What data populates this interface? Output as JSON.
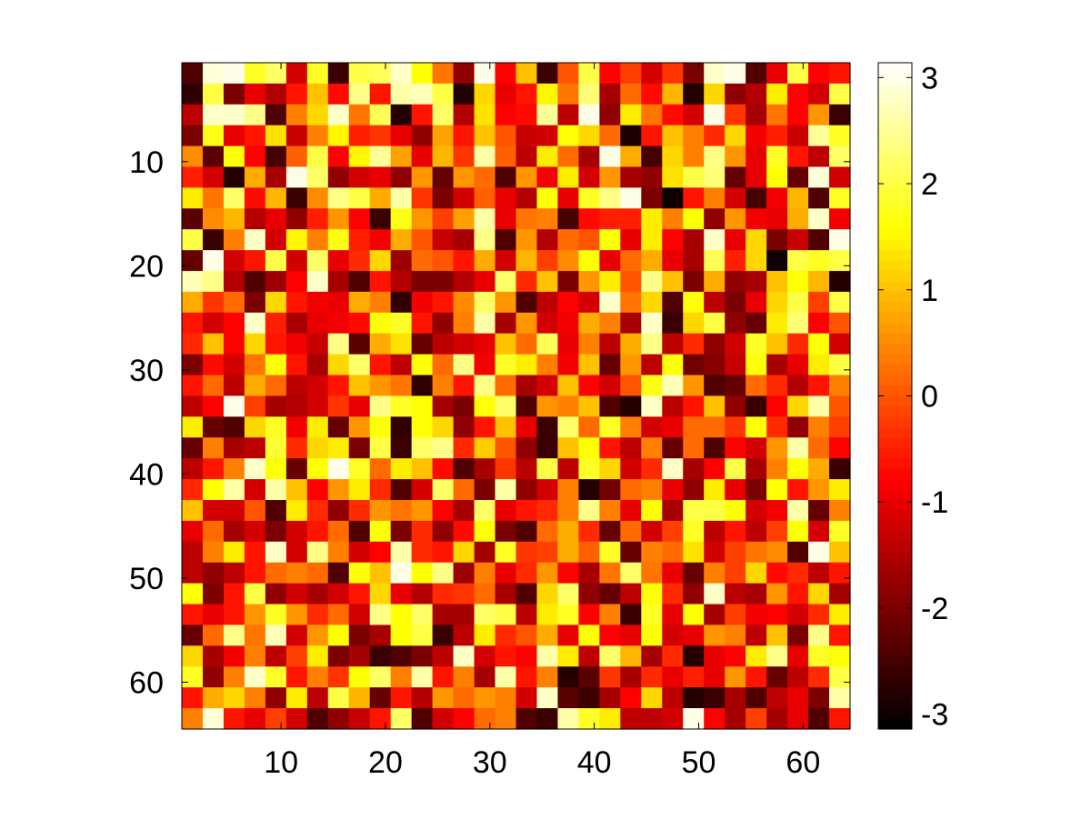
{
  "chart_data": {
    "type": "heatmap",
    "title": "",
    "xlabel": "",
    "ylabel": "",
    "grid": false,
    "rows": 32,
    "cols": 32,
    "x_extent": [
      1,
      64
    ],
    "y_extent": [
      1,
      64
    ],
    "y_direction": "top-down",
    "xticks": [
      10,
      20,
      30,
      40,
      50,
      60
    ],
    "yticks": [
      10,
      20,
      30,
      40,
      50,
      60
    ],
    "colormap": "hot",
    "colorbar": {
      "placement": "right",
      "clim": [
        -3.14,
        3.14
      ],
      "ticks": [
        -3,
        -2,
        -1,
        0,
        1,
        2,
        3
      ]
    },
    "values": [
      [
        -2.4,
        2.9,
        3.0,
        1.8,
        2.2,
        -1.2,
        1.8,
        -2.6,
        2.0,
        2.1,
        2.8,
        1.6,
        0.3,
        -1.8,
        3.0,
        -0.8,
        1.0,
        -2.6,
        0.0,
        2.0,
        -0.8,
        -0.2,
        -1.2,
        -0.3,
        -2.0,
        2.8,
        3.0,
        -2.4,
        -1.0,
        2.0,
        -0.8,
        -0.6
      ],
      [
        -2.7,
        2.0,
        -2.0,
        -1.0,
        -1.5,
        -0.6,
        1.0,
        -0.7,
        2.4,
        -0.6,
        2.6,
        2.7,
        2.0,
        -2.8,
        1.2,
        -1.0,
        -0.6,
        1.5,
        0.3,
        2.3,
        -1.6,
        0.2,
        -0.7,
        0.9,
        -2.8,
        1.2,
        -1.8,
        -1.5,
        1.4,
        -0.8,
        -1.2,
        2.0
      ],
      [
        -1.4,
        2.8,
        2.8,
        2.4,
        -2.4,
        0.4,
        1.2,
        2.8,
        0.3,
        2.1,
        -2.8,
        -0.6,
        2.2,
        -1.5,
        1.3,
        -0.8,
        -0.7,
        2.5,
        -1.4,
        3.0,
        -1.8,
        1.4,
        0.3,
        -0.7,
        -1.2,
        3.0,
        -0.3,
        -1.6,
        0.3,
        -0.8,
        0.6,
        -2.6
      ],
      [
        -2.0,
        1.7,
        -1.0,
        -0.6,
        1.3,
        -1.3,
        0.4,
        1.5,
        -0.5,
        -0.3,
        -1.0,
        -1.8,
        0.7,
        -0.6,
        1.0,
        0.0,
        -1.3,
        -1.2,
        1.6,
        1.2,
        0.2,
        -2.9,
        -0.6,
        1.0,
        0.4,
        -0.4,
        1.2,
        -0.9,
        -0.5,
        -1.3,
        2.5,
        1.8
      ],
      [
        0.5,
        -2.3,
        1.6,
        -0.8,
        -2.5,
        0.1,
        2.0,
        -0.8,
        1.5,
        2.5,
        0.7,
        -1.0,
        0.9,
        -0.3,
        2.6,
        0.1,
        -1.4,
        1.4,
        0.2,
        -1.6,
        3.0,
        0.8,
        -2.5,
        1.2,
        0.4,
        2.4,
        0.6,
        -1.0,
        1.8,
        -0.6,
        -1.4,
        2.2
      ],
      [
        -0.5,
        -1.2,
        -2.8,
        0.8,
        -1.6,
        3.0,
        2.2,
        -1.8,
        -1.2,
        -1.0,
        -1.8,
        0.6,
        -2.2,
        0.6,
        0.2,
        -2.4,
        0.6,
        -0.9,
        1.4,
        -1.2,
        0.6,
        -1.6,
        -1.8,
        1.3,
        2.0,
        2.3,
        -2.2,
        -1.0,
        1.6,
        -2.2,
        2.9,
        -1.2
      ],
      [
        1.4,
        0.3,
        2.2,
        -0.7,
        0.9,
        -2.6,
        0.5,
        2.4,
        2.0,
        0.8,
        2.6,
        -0.3,
        -2.0,
        -1.2,
        0.1,
        -1.0,
        -1.5,
        1.6,
        -1.0,
        1.8,
        2.4,
        3.0,
        -2.0,
        -3.0,
        -0.6,
        0.4,
        -1.2,
        -2.5,
        -0.9,
        0.9,
        -2.4,
        1.8
      ],
      [
        -2.3,
        0.5,
        0.9,
        -1.5,
        -1.0,
        -1.8,
        -0.5,
        0.6,
        -0.8,
        -2.6,
        1.7,
        0.6,
        -0.2,
        0.7,
        2.6,
        -1.0,
        0.3,
        0.4,
        -2.5,
        -0.7,
        -0.5,
        -0.5,
        1.4,
        0.4,
        1.6,
        -1.8,
        0.6,
        -0.9,
        -1.0,
        0.8,
        2.8,
        -0.9
      ],
      [
        2.0,
        -2.6,
        0.4,
        2.8,
        -1.2,
        1.5,
        0.4,
        1.7,
        -0.5,
        -0.9,
        0.8,
        0.0,
        -1.3,
        -1.6,
        2.4,
        -2.4,
        0.6,
        -1.5,
        0.2,
        0.0,
        1.6,
        -1.0,
        1.4,
        -0.8,
        -1.6,
        2.8,
        -1.0,
        1.2,
        -2.0,
        -1.3,
        -2.4,
        3.0
      ],
      [
        -2.2,
        3.0,
        -1.2,
        -0.6,
        2.0,
        -1.2,
        2.2,
        -1.0,
        -0.4,
        1.2,
        -1.7,
        0.2,
        0.0,
        -0.6,
        0.8,
        -1.2,
        0.9,
        -0.2,
        0.5,
        1.6,
        -1.0,
        0.2,
        0.8,
        -1.0,
        -1.6,
        2.1,
        -0.5,
        1.2,
        -3.0,
        2.0,
        1.8,
        2.0
      ],
      [
        2.7,
        2.4,
        -1.5,
        -2.4,
        -1.7,
        -0.8,
        2.8,
        -1.6,
        -2.4,
        -0.6,
        -1.5,
        -2.0,
        -2.0,
        -1.5,
        -1.0,
        2.2,
        -0.4,
        1.0,
        -2.0,
        0.6,
        1.4,
        0.0,
        2.4,
        1.0,
        -2.0,
        0.8,
        -1.8,
        -1.6,
        1.0,
        1.6,
        0.9,
        -2.8
      ],
      [
        0.8,
        -0.3,
        0.2,
        -2.0,
        1.2,
        -0.6,
        -0.9,
        -1.0,
        0.8,
        0.4,
        -2.7,
        -0.9,
        -0.6,
        0.5,
        2.2,
        0.6,
        -2.4,
        -1.4,
        -0.8,
        -1.2,
        2.8,
        0.3,
        1.2,
        -2.4,
        1.6,
        -1.4,
        -2.0,
        -1.0,
        1.2,
        2.0,
        -0.2,
        2.0
      ],
      [
        -0.6,
        -1.2,
        -0.8,
        2.8,
        -0.5,
        -1.6,
        -1.0,
        -0.9,
        -0.7,
        1.6,
        1.8,
        -0.6,
        -1.8,
        0.4,
        2.6,
        -1.6,
        0.6,
        -1.2,
        -0.9,
        0.8,
        0.4,
        -1.6,
        2.8,
        -2.6,
        1.2,
        2.0,
        -1.8,
        -2.2,
        1.4,
        2.3,
        -0.8,
        0.0
      ],
      [
        -0.4,
        1.0,
        -0.8,
        1.2,
        -0.6,
        -0.9,
        -1.3,
        2.4,
        -2.3,
        0.8,
        1.3,
        -2.2,
        -1.4,
        -1.2,
        -1.0,
        1.0,
        0.2,
        2.1,
        -1.0,
        0.4,
        -1.4,
        0.8,
        2.4,
        -1.4,
        -0.4,
        -1.8,
        -1.2,
        1.8,
        1.0,
        -0.4,
        1.6,
        -1.2
      ],
      [
        -2.0,
        -0.7,
        -1.2,
        0.3,
        1.6,
        -0.6,
        -1.6,
        1.2,
        2.2,
        -0.6,
        -1.4,
        1.6,
        0.2,
        2.4,
        -0.9,
        1.8,
        1.4,
        0.4,
        -0.9,
        1.0,
        -2.2,
        0.6,
        -1.4,
        1.6,
        -2.1,
        -1.9,
        -1.3,
        1.6,
        -1.6,
        -1.0,
        1.4,
        2.0
      ],
      [
        -0.6,
        0.2,
        -1.4,
        0.8,
        0.2,
        -1.4,
        -1.2,
        -0.6,
        1.0,
        0.6,
        0.3,
        -2.7,
        0.4,
        -0.6,
        2.4,
        0.2,
        -1.6,
        -1.2,
        1.0,
        -0.8,
        -1.2,
        0.0,
        1.7,
        2.7,
        0.6,
        -2.4,
        -2.2,
        0.2,
        -0.4,
        -1.5,
        -0.6,
        0.4
      ],
      [
        -1.4,
        -0.8,
        3.0,
        -0.2,
        -1.6,
        -1.5,
        -1.2,
        -0.3,
        -1.0,
        2.4,
        1.8,
        1.6,
        -1.6,
        -2.0,
        1.6,
        2.2,
        -2.4,
        0.6,
        0.4,
        1.0,
        -2.4,
        -2.8,
        2.8,
        -1.4,
        -0.6,
        1.0,
        -1.8,
        -2.6,
        -0.8,
        1.2,
        2.6,
        0.0
      ],
      [
        1.4,
        -2.2,
        -2.4,
        1.2,
        1.8,
        -0.9,
        1.4,
        -2.2,
        0.6,
        1.6,
        -2.7,
        1.6,
        1.2,
        -1.8,
        -0.6,
        1.0,
        -1.0,
        -2.6,
        2.2,
        0.2,
        1.8,
        0.4,
        -1.2,
        -1.0,
        0.2,
        0.2,
        -0.3,
        1.6,
        -0.4,
        -1.8,
        0.4,
        -0.2
      ],
      [
        -2.2,
        0.4,
        -1.6,
        -1.4,
        1.9,
        -0.4,
        1.2,
        1.4,
        -2.0,
        2.0,
        -2.6,
        2.2,
        2.4,
        -0.4,
        1.1,
        0.0,
        -1.8,
        -2.6,
        1.0,
        1.6,
        -0.6,
        -1.4,
        0.4,
        -2.2,
        0.2,
        -2.4,
        -0.8,
        -1.2,
        0.6,
        2.6,
        0.2,
        -0.8
      ],
      [
        -1.4,
        -0.6,
        0.4,
        2.8,
        1.6,
        -2.2,
        1.6,
        3.0,
        1.8,
        0.2,
        1.4,
        1.0,
        -0.7,
        -2.4,
        -1.6,
        -0.3,
        -1.4,
        2.0,
        -1.4,
        1.8,
        1.2,
        -1.2,
        -0.4,
        2.8,
        -1.6,
        -0.8,
        2.0,
        -1.6,
        0.4,
        1.6,
        0.8,
        -2.6
      ],
      [
        -0.4,
        1.6,
        2.6,
        -1.2,
        2.6,
        1.0,
        -0.8,
        0.6,
        1.4,
        -0.4,
        -2.4,
        -1.2,
        2.2,
        0.2,
        -2.0,
        2.6,
        -1.8,
        -1.2,
        0.4,
        -2.8,
        -2.1,
        0.2,
        0.4,
        -1.0,
        -1.8,
        1.4,
        -1.0,
        -2.0,
        1.6,
        -0.6,
        0.6,
        1.4
      ],
      [
        1.0,
        -1.2,
        -1.2,
        0.0,
        -2.4,
        1.4,
        -0.4,
        -1.8,
        -0.4,
        0.6,
        0.3,
        0.6,
        -0.8,
        -1.6,
        2.2,
        -1.0,
        -0.6,
        -0.4,
        0.4,
        2.4,
        0.4,
        -1.0,
        1.6,
        -1.6,
        2.0,
        2.0,
        1.6,
        -1.2,
        -0.9,
        2.6,
        -2.2,
        0.4
      ],
      [
        -1.0,
        0.2,
        -1.6,
        -1.2,
        -2.0,
        -1.2,
        -0.6,
        0.2,
        -2.4,
        1.6,
        -2.0,
        -0.4,
        -1.8,
        -0.7,
        1.6,
        -2.0,
        -2.4,
        0.2,
        0.8,
        -0.4,
        -2.2,
        0.2,
        -1.2,
        -0.2,
        1.8,
        -1.4,
        -0.6,
        -1.4,
        -0.2,
        1.6,
        -1.2,
        1.8
      ],
      [
        -1.4,
        0.4,
        1.4,
        -0.6,
        2.8,
        -1.2,
        2.4,
        0.4,
        -1.2,
        -0.8,
        2.6,
        -0.4,
        -0.6,
        1.2,
        -1.6,
        1.8,
        -0.3,
        -0.2,
        0.8,
        0.1,
        1.8,
        -2.2,
        0.4,
        0.2,
        1.3,
        -1.2,
        -0.2,
        0.3,
        0.5,
        -2.4,
        3.0,
        1.0
      ],
      [
        -1.4,
        -1.8,
        -1.4,
        -0.6,
        0.2,
        0.4,
        0.2,
        -2.4,
        1.6,
        1.0,
        3.0,
        1.6,
        2.4,
        -1.7,
        0.4,
        -1.0,
        -0.4,
        0.6,
        -0.8,
        -1.6,
        0.3,
        2.2,
        0.3,
        -1.0,
        -2.2,
        0.4,
        -0.2,
        1.2,
        -0.7,
        -0.4,
        -1.4,
        -0.6
      ],
      [
        1.6,
        -2.0,
        -0.6,
        2.0,
        -1.8,
        -1.2,
        -1.6,
        -1.2,
        -0.6,
        1.2,
        -1.0,
        -1.5,
        -0.4,
        -0.3,
        0.2,
        -1.6,
        -2.4,
        1.2,
        2.2,
        -1.8,
        -2.2,
        -1.4,
        1.6,
        -0.4,
        -1.8,
        2.8,
        -1.4,
        -1.6,
        0.6,
        -0.6,
        1.2,
        -1.6
      ],
      [
        -0.6,
        -1.0,
        -0.6,
        0.6,
        1.8,
        0.6,
        -0.4,
        0.2,
        -1.2,
        2.4,
        1.6,
        2.2,
        -1.6,
        -1.6,
        2.2,
        2.0,
        -1.4,
        1.4,
        1.8,
        -0.8,
        0.4,
        -2.6,
        1.8,
        -1.0,
        1.6,
        -1.6,
        -0.2,
        -0.9,
        -0.8,
        -1.2,
        -0.4,
        1.4
      ],
      [
        -2.2,
        0.2,
        2.4,
        0.3,
        2.7,
        -1.2,
        0.6,
        1.6,
        -2.0,
        -1.6,
        1.6,
        2.0,
        -2.6,
        -1.4,
        1.4,
        -0.4,
        0.0,
        0.8,
        -1.0,
        1.6,
        -0.8,
        -1.0,
        1.6,
        -1.2,
        -1.0,
        0.6,
        0.4,
        -1.4,
        1.0,
        -2.0,
        2.4,
        -0.6
      ],
      [
        1.2,
        -1.6,
        -0.9,
        0.4,
        -1.4,
        -0.2,
        1.4,
        -2.0,
        -1.6,
        -2.6,
        -2.4,
        -2.0,
        -1.4,
        2.8,
        -1.2,
        -0.6,
        -0.8,
        2.6,
        1.4,
        -1.4,
        2.2,
        0.9,
        -1.6,
        -0.4,
        -2.8,
        -1.0,
        -0.8,
        1.4,
        2.4,
        -1.0,
        1.8,
        1.6
      ],
      [
        1.8,
        -1.8,
        0.4,
        2.8,
        1.8,
        -0.6,
        0.4,
        -0.3,
        1.6,
        2.2,
        0.4,
        2.6,
        -0.6,
        0.4,
        -1.6,
        2.6,
        -0.6,
        0.4,
        -2.8,
        -2.3,
        -0.3,
        -1.6,
        -0.4,
        -1.0,
        -0.5,
        -1.0,
        0.6,
        -0.6,
        -2.2,
        -1.4,
        -0.4,
        2.0
      ],
      [
        -0.6,
        0.8,
        1.2,
        0.4,
        -1.8,
        1.4,
        -1.4,
        2.0,
        0.9,
        -2.2,
        -0.6,
        -1.5,
        0.6,
        0.2,
        0.6,
        0.4,
        -1.2,
        2.8,
        -2.3,
        -2.6,
        -1.6,
        -0.8,
        1.2,
        -1.4,
        -2.8,
        -2.6,
        -1.6,
        -2.4,
        -1.4,
        -1.0,
        -2.0,
        2.6
      ],
      [
        0.4,
        2.9,
        -0.6,
        -1.0,
        -0.2,
        -1.2,
        -2.4,
        -1.8,
        -1.3,
        -0.6,
        2.2,
        -2.4,
        -1.2,
        -0.8,
        0.2,
        0.4,
        -2.4,
        -2.6,
        2.6,
        1.8,
        1.4,
        -1.4,
        -1.4,
        -1.2,
        3.0,
        -0.8,
        -1.6,
        -0.2,
        -1.6,
        -1.0,
        -2.4,
        -0.6
      ]
    ]
  }
}
